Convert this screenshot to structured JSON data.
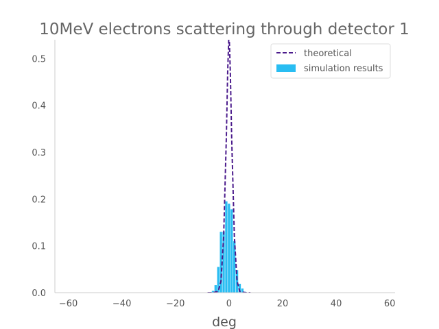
{
  "chart_data": {
    "type": "bar",
    "title": "10MeV electrons scattering through detector 1",
    "xlabel": "deg",
    "ylabel": "",
    "xlim": [
      -65,
      62
    ],
    "ylim": [
      0,
      0.54
    ],
    "xticks": [
      -60,
      -40,
      -20,
      0,
      20,
      40,
      60
    ],
    "xtick_labels": [
      "−60",
      "−40",
      "−20",
      "0",
      "20",
      "40",
      "60"
    ],
    "yticks": [
      0.0,
      0.1,
      0.2,
      0.3,
      0.4,
      0.5
    ],
    "ytick_labels": [
      "0.0",
      "0.1",
      "0.2",
      "0.3",
      "0.4",
      "0.5"
    ],
    "grid": false,
    "legend_position": "top-right",
    "series": [
      {
        "name": "theoretical",
        "kind": "line",
        "style": "dashed",
        "color": "#4b1b8c",
        "x": [
          -8,
          -6,
          -4,
          -3,
          -2,
          -1,
          -0.5,
          0,
          0.5,
          1,
          2,
          3,
          4,
          6,
          8
        ],
        "y": [
          0.0,
          0.0,
          0.003,
          0.025,
          0.12,
          0.33,
          0.47,
          0.56,
          0.47,
          0.33,
          0.12,
          0.025,
          0.003,
          0.0,
          0.0
        ]
      },
      {
        "name": "simulation results",
        "kind": "bar",
        "color": "#29bdf2",
        "bin_width": 1,
        "x": [
          -6,
          -5,
          -4,
          -3,
          -2,
          -1,
          0,
          1,
          2,
          3,
          4,
          5,
          6
        ],
        "y": [
          0.004,
          0.016,
          0.055,
          0.13,
          0.13,
          0.195,
          0.19,
          0.178,
          0.11,
          0.048,
          0.019,
          0.009,
          0.002
        ]
      }
    ]
  }
}
